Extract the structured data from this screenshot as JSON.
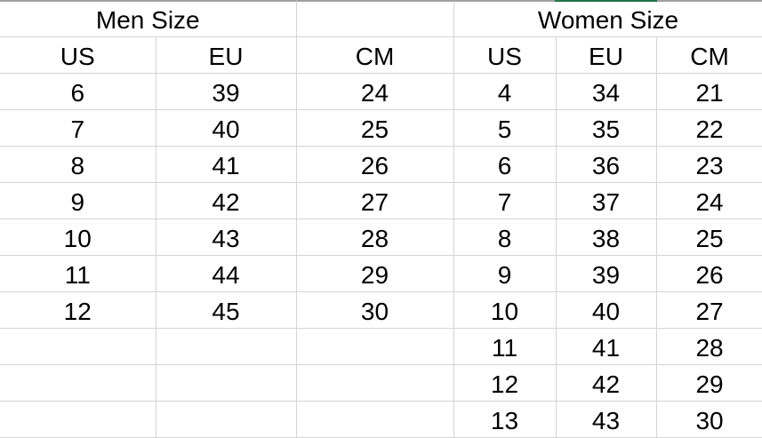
{
  "header": {
    "men": "Men Size",
    "women": "Women Size"
  },
  "columns": {
    "men": [
      "US",
      "EU",
      "CM"
    ],
    "women": [
      "US",
      "EU",
      "CM"
    ]
  },
  "men_rows": [
    [
      "6",
      "39",
      "24"
    ],
    [
      "7",
      "40",
      "25"
    ],
    [
      "8",
      "41",
      "26"
    ],
    [
      "9",
      "42",
      "27"
    ],
    [
      "10",
      "43",
      "28"
    ],
    [
      "11",
      "44",
      "29"
    ],
    [
      "12",
      "45",
      "30"
    ],
    [
      "",
      "",
      ""
    ],
    [
      "",
      "",
      ""
    ],
    [
      "",
      "",
      ""
    ]
  ],
  "women_rows": [
    [
      "4",
      "34",
      "21"
    ],
    [
      "5",
      "35",
      "22"
    ],
    [
      "6",
      "36",
      "23"
    ],
    [
      "7",
      "37",
      "24"
    ],
    [
      "8",
      "38",
      "25"
    ],
    [
      "9",
      "39",
      "26"
    ],
    [
      "10",
      "40",
      "27"
    ],
    [
      "11",
      "41",
      "28"
    ],
    [
      "12",
      "42",
      "29"
    ],
    [
      "13",
      "43",
      "30"
    ]
  ],
  "colors": {
    "grid": "#d4d4d4",
    "selection": "#217346"
  }
}
